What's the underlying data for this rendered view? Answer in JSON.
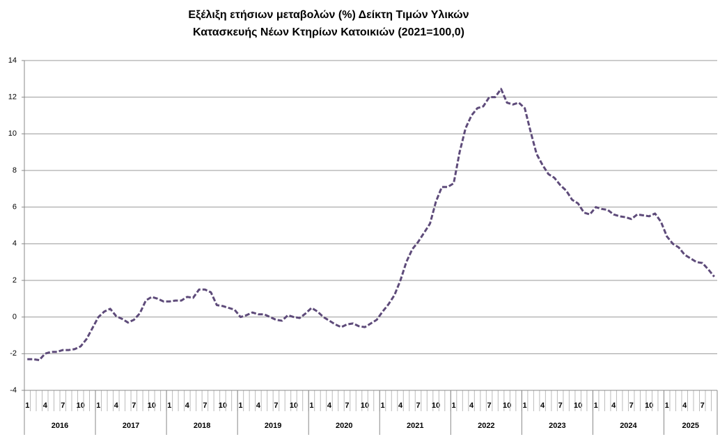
{
  "chart_data": {
    "type": "line",
    "title": [
      "Εξέλιξη ετήσιων μεταβολών (%) Δείκτη Τιμών Υλικών",
      "Κατασκευής Νέων Κτηρίων Κατοικιών (2021=100,0)"
    ],
    "categories": [
      "1",
      null,
      null,
      "4",
      null,
      null,
      "7",
      null,
      null,
      "10",
      null,
      null,
      "1",
      null,
      null,
      "4",
      null,
      null,
      "7",
      null,
      null,
      "10",
      null,
      null,
      "1",
      null,
      null,
      "4",
      null,
      null,
      "7",
      null,
      null,
      "10",
      null,
      null,
      "1",
      null,
      null,
      "4",
      null,
      null,
      "7",
      null,
      null,
      "10",
      null,
      null,
      "1",
      null,
      null,
      "4",
      null,
      null,
      "7",
      null,
      null,
      "10",
      null,
      null,
      "1",
      null,
      null,
      "4",
      null,
      null,
      "7",
      null,
      null,
      "10",
      null,
      null,
      "1",
      null,
      null,
      "4",
      null,
      null,
      "7",
      null,
      null,
      "10",
      null,
      null,
      "1",
      null,
      null,
      "4",
      null,
      null,
      "7",
      null,
      null,
      "10",
      null,
      null,
      "1",
      null,
      null,
      "4",
      null,
      null,
      "7",
      null,
      null,
      "10",
      null,
      null,
      "1",
      null,
      null,
      "4",
      null,
      null,
      "7",
      null,
      null
    ],
    "years": [
      "2016",
      "2017",
      "2018",
      "2019",
      "2020",
      "2021",
      "2022",
      "2023",
      "2024",
      "2025"
    ],
    "series": [
      {
        "color": "#5e4b7a",
        "values": [
          -2.3,
          -2.3,
          -2.35,
          -2.0,
          -1.9,
          -1.9,
          -1.8,
          -1.8,
          -1.75,
          -1.6,
          -1.2,
          -0.6,
          0.0,
          0.3,
          0.45,
          0.05,
          -0.1,
          -0.3,
          -0.15,
          0.2,
          0.9,
          1.1,
          1.0,
          0.85,
          0.85,
          0.9,
          0.9,
          1.1,
          1.05,
          1.5,
          1.5,
          1.35,
          0.65,
          0.6,
          0.5,
          0.4,
          0.0,
          0.1,
          0.25,
          0.15,
          0.15,
          0.0,
          -0.15,
          -0.2,
          0.1,
          0.0,
          -0.05,
          0.2,
          0.5,
          0.3,
          0.0,
          -0.2,
          -0.4,
          -0.55,
          -0.4,
          -0.35,
          -0.5,
          -0.55,
          -0.35,
          -0.15,
          0.3,
          0.7,
          1.2,
          2.0,
          3.0,
          3.7,
          4.1,
          4.6,
          5.1,
          6.3,
          7.1,
          7.1,
          7.3,
          9.0,
          10.3,
          11.0,
          11.4,
          11.5,
          12.0,
          12.0,
          12.45,
          11.7,
          11.6,
          11.7,
          11.4,
          10.1,
          8.9,
          8.3,
          7.8,
          7.6,
          7.2,
          6.9,
          6.4,
          6.2,
          5.7,
          5.6,
          6.0,
          5.9,
          5.85,
          5.6,
          5.5,
          5.45,
          5.35,
          5.6,
          5.55,
          5.5,
          5.65,
          5.2,
          4.4,
          4.0,
          3.8,
          3.4,
          3.2,
          3.0,
          2.95,
          2.6,
          2.2
        ]
      }
    ],
    "ylim": [
      -4,
      14
    ],
    "yticks": [
      -4,
      -2,
      0,
      2,
      4,
      6,
      8,
      10,
      12,
      14
    ],
    "grid": true
  }
}
